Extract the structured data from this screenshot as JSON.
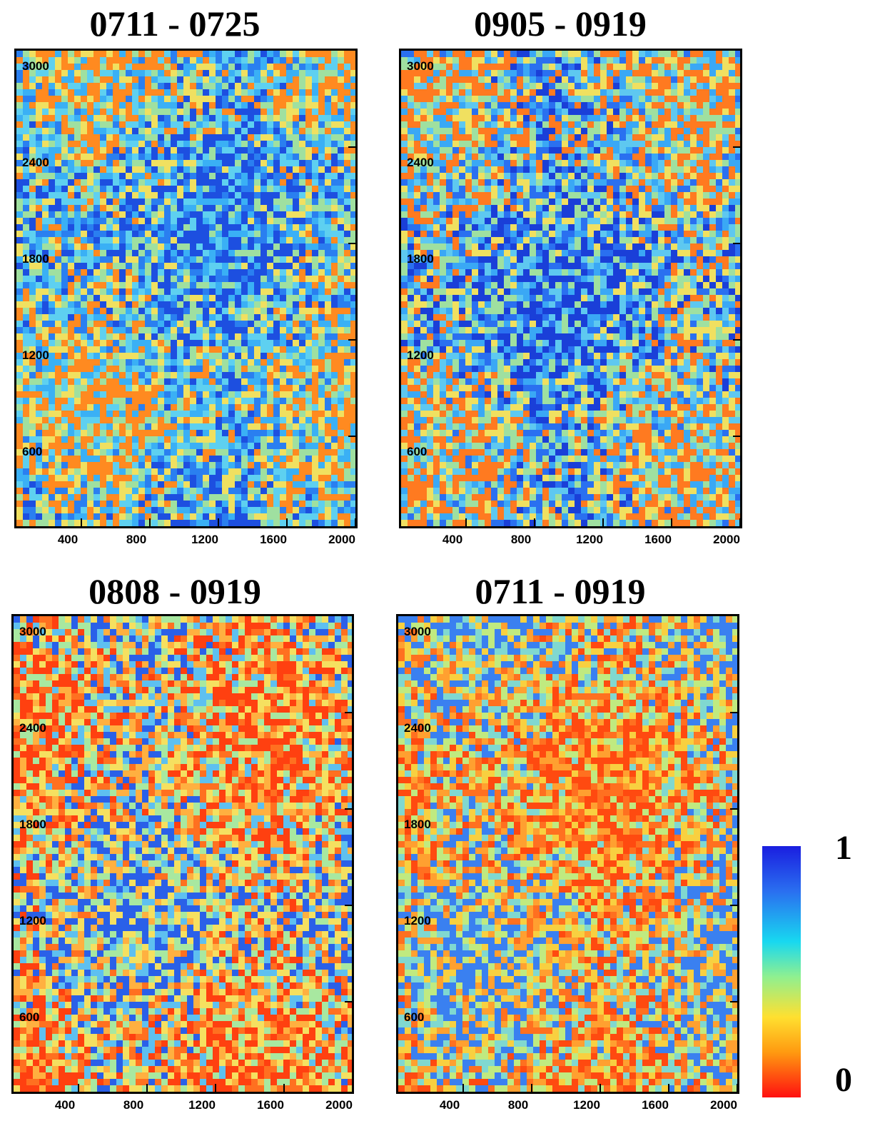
{
  "panels": [
    {
      "title": "0711 - 0725",
      "palette": [
        "#1d4fe0",
        "#2a7ff0",
        "#3ab0f5",
        "#5ed0f0",
        "#9fe0a0",
        "#f0e060",
        "#ff8a20"
      ],
      "bias": "blue"
    },
    {
      "title": "0905 - 0919",
      "palette": [
        "#1a3fd8",
        "#2a70f0",
        "#3aa8f5",
        "#5ec8f0",
        "#9fe0a0",
        "#f0e060",
        "#ff7a20"
      ],
      "bias": "blue"
    },
    {
      "title": "0808 - 0919",
      "palette": [
        "#2a60e8",
        "#5ec0f0",
        "#a8e8a0",
        "#f5e060",
        "#ffb040",
        "#ff7020",
        "#ff4010"
      ],
      "bias": "mixed"
    },
    {
      "title": "0711 - 0919",
      "palette": [
        "#3a80f0",
        "#80d8d0",
        "#c0ea80",
        "#f8d040",
        "#ffa030",
        "#ff7020",
        "#ff4a10"
      ],
      "bias": "orange"
    }
  ],
  "axes": {
    "y_ticks": [
      "3000",
      "2400",
      "1800",
      "1200",
      "600"
    ],
    "x_ticks": [
      "400",
      "800",
      "1200",
      "1600",
      "2000"
    ]
  },
  "colorbar": {
    "max_label": "1",
    "min_label": "0",
    "colors": [
      "#1a1ee0",
      "#18d8f0",
      "#8ff090",
      "#ffe030",
      "#ff1010"
    ]
  }
}
